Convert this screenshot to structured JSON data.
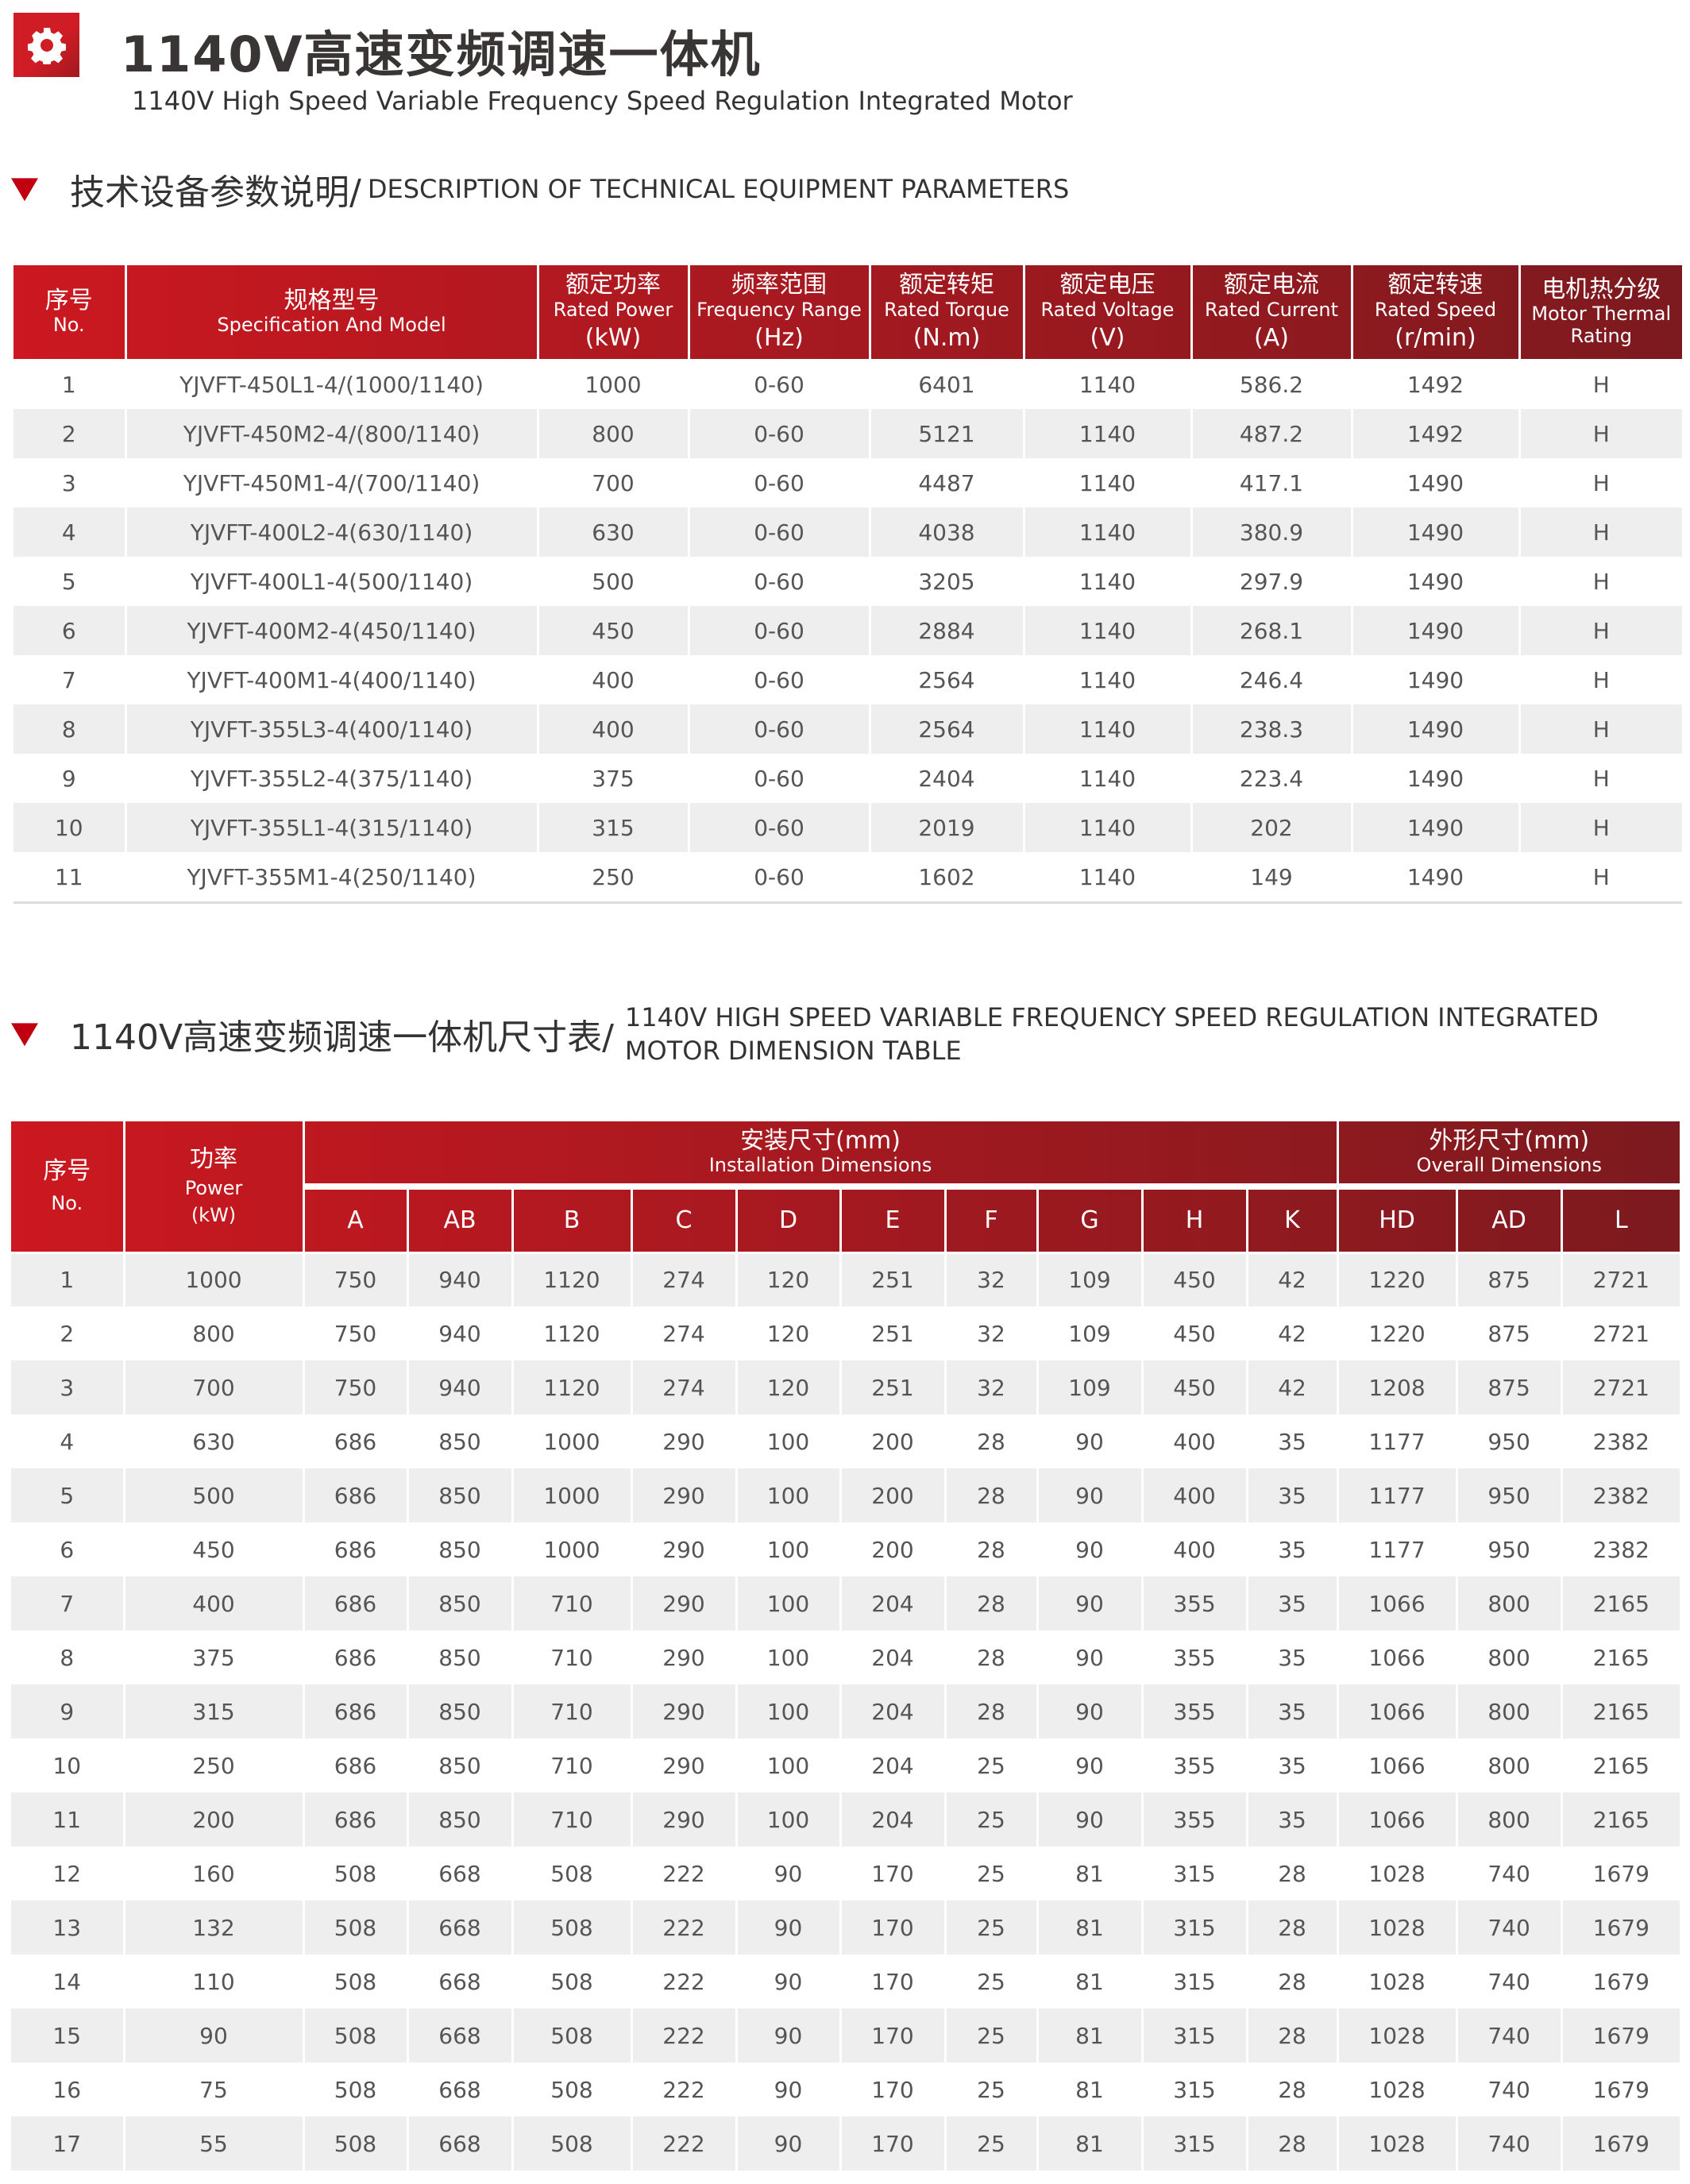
{
  "header": {
    "title": "1140V高速变频调速一体机",
    "subtitle": "1140V High Speed Variable Frequency Speed Regulation Integrated Motor",
    "logo_icon": "gear-icon",
    "accent": "#c8161e"
  },
  "section1": {
    "zh": "技术设备参数说明/",
    "en": "DESCRIPTION OF TECHNICAL EQUIPMENT PARAMETERS"
  },
  "table1": {
    "headers": [
      {
        "zh": "序号",
        "en": "No.",
        "unit": ""
      },
      {
        "zh": "规格型号",
        "en": "Specification And Model",
        "unit": ""
      },
      {
        "zh": "额定功率",
        "en": "Rated Power",
        "unit": "(kW)"
      },
      {
        "zh": "频率范围",
        "en": "Frequency Range",
        "unit": "(Hz)"
      },
      {
        "zh": "额定转矩",
        "en": "Rated Torque",
        "unit": "(N.m)"
      },
      {
        "zh": "额定电压",
        "en": "Rated Voltage",
        "unit": "(V)"
      },
      {
        "zh": "额定电流",
        "en": "Rated Current",
        "unit": "(A)"
      },
      {
        "zh": "额定转速",
        "en": "Rated Speed",
        "unit": "(r/min)"
      },
      {
        "zh": "电机热分级",
        "en": "Motor Thermal Rating",
        "unit": ""
      }
    ],
    "rows": [
      [
        "1",
        "YJVFT-450L1-4/(1000/1140)",
        "1000",
        "0-60",
        "6401",
        "1140",
        "586.2",
        "1492",
        "H"
      ],
      [
        "2",
        "YJVFT-450M2-4/(800/1140)",
        "800",
        "0-60",
        "5121",
        "1140",
        "487.2",
        "1492",
        "H"
      ],
      [
        "3",
        "YJVFT-450M1-4/(700/1140)",
        "700",
        "0-60",
        "4487",
        "1140",
        "417.1",
        "1490",
        "H"
      ],
      [
        "4",
        "YJVFT-400L2-4(630/1140)",
        "630",
        "0-60",
        "4038",
        "1140",
        "380.9",
        "1490",
        "H"
      ],
      [
        "5",
        "YJVFT-400L1-4(500/1140)",
        "500",
        "0-60",
        "3205",
        "1140",
        "297.9",
        "1490",
        "H"
      ],
      [
        "6",
        "YJVFT-400M2-4(450/1140)",
        "450",
        "0-60",
        "2884",
        "1140",
        "268.1",
        "1490",
        "H"
      ],
      [
        "7",
        "YJVFT-400M1-4(400/1140)",
        "400",
        "0-60",
        "2564",
        "1140",
        "246.4",
        "1490",
        "H"
      ],
      [
        "8",
        "YJVFT-355L3-4(400/1140)",
        "400",
        "0-60",
        "2564",
        "1140",
        "238.3",
        "1490",
        "H"
      ],
      [
        "9",
        "YJVFT-355L2-4(375/1140)",
        "375",
        "0-60",
        "2404",
        "1140",
        "223.4",
        "1490",
        "H"
      ],
      [
        "10",
        "YJVFT-355L1-4(315/1140)",
        "315",
        "0-60",
        "2019",
        "1140",
        "202",
        "1490",
        "H"
      ],
      [
        "11",
        "YJVFT-355M1-4(250/1140)",
        "250",
        "0-60",
        "1602",
        "1140",
        "149",
        "1490",
        "H"
      ]
    ]
  },
  "section2": {
    "zh": "1140V高速变频调速一体机尺寸表/",
    "en_line1": "1140V HIGH SPEED VARIABLE FREQUENCY SPEED REGULATION INTEGRATED",
    "en_line2": "MOTOR DIMENSION TABLE"
  },
  "table2": {
    "no": {
      "zh": "序号",
      "en": "No."
    },
    "power": {
      "zh": "功率",
      "en": "Power",
      "unit": "(kW)"
    },
    "install": {
      "zh": "安装尺寸(mm)",
      "en": "Installation Dimensions"
    },
    "overall": {
      "zh": "外形尺寸(mm)",
      "en": "Overall Dimensions"
    },
    "columns": [
      "A",
      "AB",
      "B",
      "C",
      "D",
      "E",
      "F",
      "G",
      "H",
      "K",
      "HD",
      "AD",
      "L"
    ],
    "rows": [
      [
        "1",
        "1000",
        "750",
        "940",
        "1120",
        "274",
        "120",
        "251",
        "32",
        "109",
        "450",
        "42",
        "1220",
        "875",
        "2721"
      ],
      [
        "2",
        "800",
        "750",
        "940",
        "1120",
        "274",
        "120",
        "251",
        "32",
        "109",
        "450",
        "42",
        "1220",
        "875",
        "2721"
      ],
      [
        "3",
        "700",
        "750",
        "940",
        "1120",
        "274",
        "120",
        "251",
        "32",
        "109",
        "450",
        "42",
        "1208",
        "875",
        "2721"
      ],
      [
        "4",
        "630",
        "686",
        "850",
        "1000",
        "290",
        "100",
        "200",
        "28",
        "90",
        "400",
        "35",
        "1177",
        "950",
        "2382"
      ],
      [
        "5",
        "500",
        "686",
        "850",
        "1000",
        "290",
        "100",
        "200",
        "28",
        "90",
        "400",
        "35",
        "1177",
        "950",
        "2382"
      ],
      [
        "6",
        "450",
        "686",
        "850",
        "1000",
        "290",
        "100",
        "200",
        "28",
        "90",
        "400",
        "35",
        "1177",
        "950",
        "2382"
      ],
      [
        "7",
        "400",
        "686",
        "850",
        "710",
        "290",
        "100",
        "204",
        "28",
        "90",
        "355",
        "35",
        "1066",
        "800",
        "2165"
      ],
      [
        "8",
        "375",
        "686",
        "850",
        "710",
        "290",
        "100",
        "204",
        "28",
        "90",
        "355",
        "35",
        "1066",
        "800",
        "2165"
      ],
      [
        "9",
        "315",
        "686",
        "850",
        "710",
        "290",
        "100",
        "204",
        "28",
        "90",
        "355",
        "35",
        "1066",
        "800",
        "2165"
      ],
      [
        "10",
        "250",
        "686",
        "850",
        "710",
        "290",
        "100",
        "204",
        "25",
        "90",
        "355",
        "35",
        "1066",
        "800",
        "2165"
      ],
      [
        "11",
        "200",
        "686",
        "850",
        "710",
        "290",
        "100",
        "204",
        "25",
        "90",
        "355",
        "35",
        "1066",
        "800",
        "2165"
      ],
      [
        "12",
        "160",
        "508",
        "668",
        "508",
        "222",
        "90",
        "170",
        "25",
        "81",
        "315",
        "28",
        "1028",
        "740",
        "1679"
      ],
      [
        "13",
        "132",
        "508",
        "668",
        "508",
        "222",
        "90",
        "170",
        "25",
        "81",
        "315",
        "28",
        "1028",
        "740",
        "1679"
      ],
      [
        "14",
        "110",
        "508",
        "668",
        "508",
        "222",
        "90",
        "170",
        "25",
        "81",
        "315",
        "28",
        "1028",
        "740",
        "1679"
      ],
      [
        "15",
        "90",
        "508",
        "668",
        "508",
        "222",
        "90",
        "170",
        "25",
        "81",
        "315",
        "28",
        "1028",
        "740",
        "1679"
      ],
      [
        "16",
        "75",
        "508",
        "668",
        "508",
        "222",
        "90",
        "170",
        "25",
        "81",
        "315",
        "28",
        "1028",
        "740",
        "1679"
      ],
      [
        "17",
        "55",
        "508",
        "668",
        "508",
        "222",
        "90",
        "170",
        "25",
        "81",
        "315",
        "28",
        "1028",
        "740",
        "1679"
      ]
    ]
  }
}
